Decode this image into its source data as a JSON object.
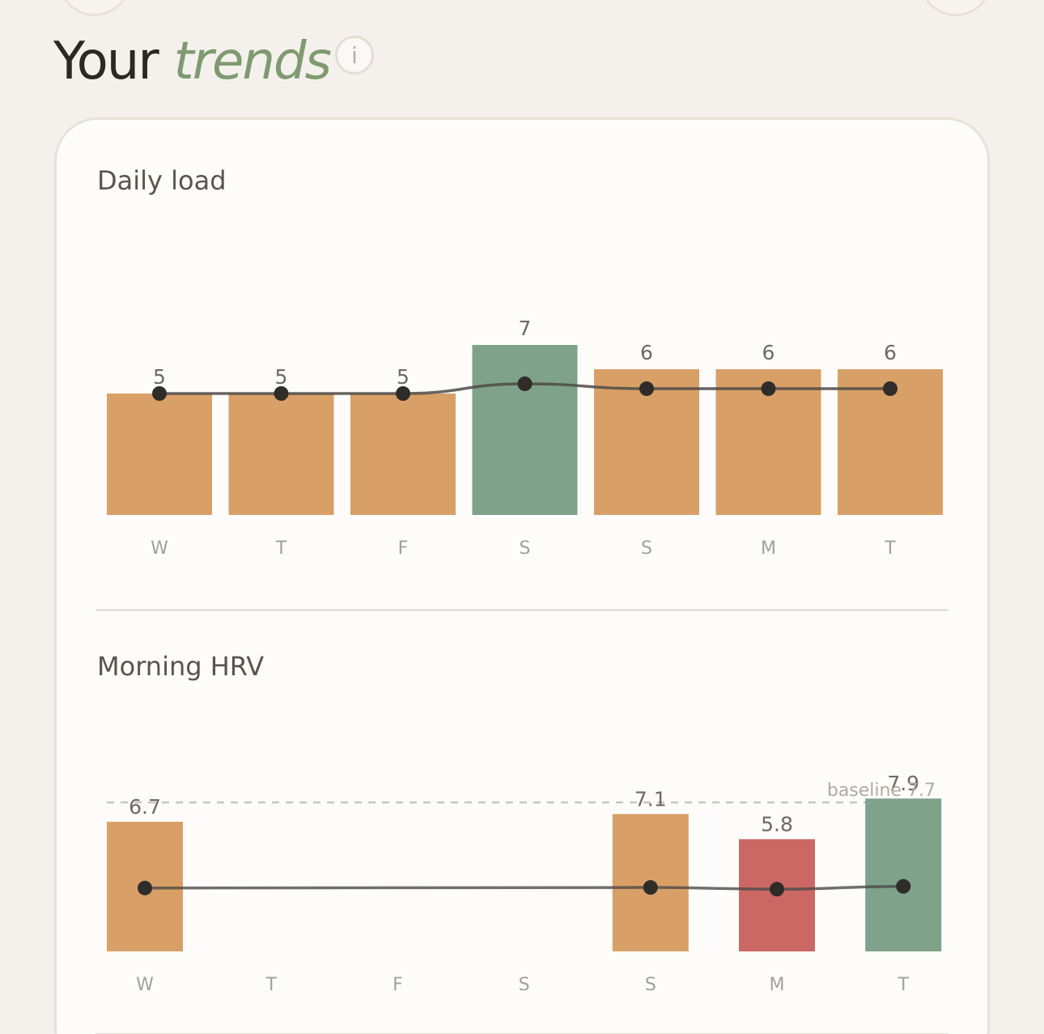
{
  "header": {
    "title_plain": "Your",
    "title_accent": "trends",
    "info_icon_text": "i"
  },
  "colors": {
    "orange": "#d8a067",
    "green": "#7fa28a",
    "red": "#cc6864",
    "line": "#4d4a47"
  },
  "chart_data": [
    {
      "type": "bar",
      "title": "Daily load",
      "categories": [
        "W",
        "T",
        "F",
        "S",
        "S",
        "M",
        "T"
      ],
      "values": [
        5,
        5,
        5,
        7,
        6,
        6,
        6
      ],
      "value_labels": [
        "5",
        "5",
        "5",
        "7",
        "6",
        "6",
        "6"
      ],
      "bar_colors": [
        "#d8a067",
        "#d8a067",
        "#d8a067",
        "#7fa28a",
        "#d8a067",
        "#d8a067",
        "#d8a067"
      ],
      "trend_line": [
        5,
        5,
        5,
        5.4,
        5.2,
        5.2,
        5.2
      ],
      "ylim": [
        0,
        7
      ],
      "grid": false
    },
    {
      "type": "bar",
      "title": "Morning HRV",
      "categories": [
        "W",
        "T",
        "F",
        "S",
        "S",
        "M",
        "T"
      ],
      "values": [
        6.7,
        null,
        null,
        null,
        7.1,
        5.8,
        7.9
      ],
      "value_labels": [
        "6.7",
        "",
        "",
        "",
        "7.1",
        "5.8",
        "7.9"
      ],
      "bar_colors": [
        "#d8a067",
        null,
        null,
        null,
        "#d8a067",
        "#cc6864",
        "#7fa28a"
      ],
      "trend_line": [
        5.55,
        null,
        null,
        null,
        5.6,
        5.45,
        5.7
      ],
      "baseline": {
        "value": 7.7,
        "label": "baseline",
        "value_label": "7.7"
      },
      "grid": false
    }
  ]
}
